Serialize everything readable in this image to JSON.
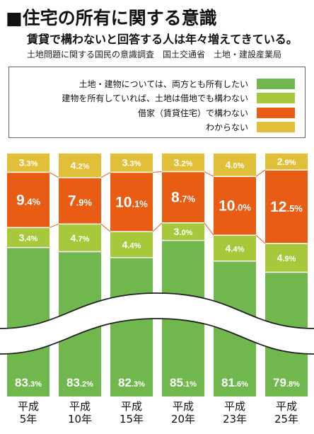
{
  "header": {
    "title": "■住宅の所有に関する意識",
    "subtitle": "賃貸で構わないと回答する人は年々増えてきている。",
    "source": "土地問題に関する国民の意識調査　国土交通省　土地・建設産業局"
  },
  "chart_data": {
    "type": "bar",
    "stacked": true,
    "percent_stacked": true,
    "categories": [
      "平成\n5年",
      "平成\n10年",
      "平成\n15年",
      "平成\n20年",
      "平成\n23年",
      "平成\n25年"
    ],
    "series": [
      {
        "name": "土地・建物については、両方とも所有したい",
        "color": "#70b84e",
        "values": [
          83.3,
          83.2,
          82.3,
          85.1,
          81.6,
          79.8
        ]
      },
      {
        "name": "建物を所有していれば、土地は借地でも構わない",
        "color": "#a8c83c",
        "values": [
          3.4,
          4.7,
          4.4,
          3.0,
          4.4,
          4.9
        ]
      },
      {
        "name": "借家（賃貸住宅）で構わない",
        "color": "#e85c14",
        "values": [
          9.4,
          7.9,
          10.1,
          8.7,
          10.0,
          12.5
        ]
      },
      {
        "name": "わからない",
        "color": "#e2bf38",
        "values": [
          3.3,
          4.2,
          3.3,
          3.2,
          4.0,
          2.9
        ]
      }
    ],
    "value_unit": "%",
    "axis_break": true,
    "legend_position": "top"
  }
}
